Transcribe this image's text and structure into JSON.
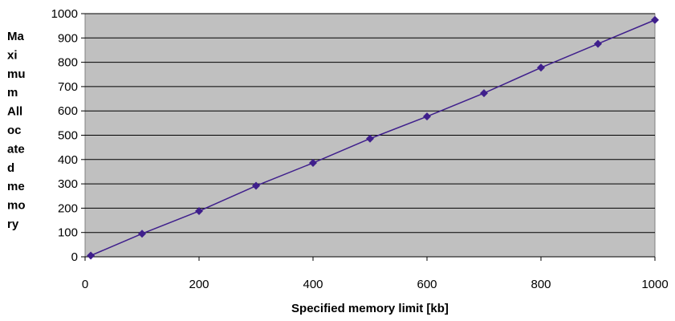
{
  "chart_data": {
    "type": "line",
    "title": "",
    "xlabel": "Specified memory limit [kb]",
    "ylabel_lines": [
      "Ma",
      "xi",
      "mu",
      "m",
      "All",
      "oc",
      "ate",
      "d",
      "me",
      "mo",
      "ry"
    ],
    "xlim": [
      0,
      1000
    ],
    "ylim": [
      0,
      1000
    ],
    "xticks": [
      0,
      200,
      400,
      600,
      800,
      1000
    ],
    "yticks": [
      0,
      100,
      200,
      300,
      400,
      500,
      600,
      700,
      800,
      900,
      1000
    ],
    "grid": "horizontal",
    "series": [
      {
        "color": "#3f1f8c",
        "marker": "diamond",
        "x": [
          10,
          100,
          200,
          300,
          400,
          500,
          600,
          700,
          800,
          900,
          1000
        ],
        "y": [
          5,
          95,
          188,
          292,
          386,
          486,
          577,
          673,
          778,
          876,
          974
        ]
      }
    ]
  },
  "colors": {
    "plot_background": "#c0c0c0",
    "gridline": "#000000",
    "series": "#3f1f8c"
  }
}
